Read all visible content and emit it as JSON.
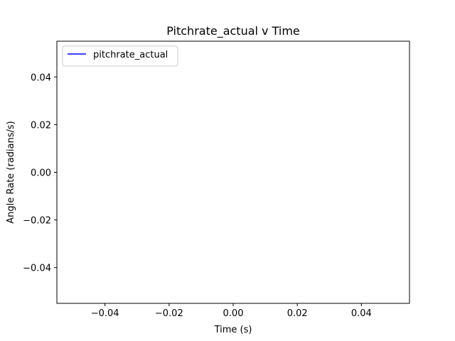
{
  "chart_data": {
    "type": "line",
    "title": "Pitchrate_actual v Time",
    "xlabel": "Time (s)",
    "ylabel": "Angle Rate (radians/s)",
    "xlim": [
      -0.055,
      0.055
    ],
    "ylim": [
      -0.055,
      0.055
    ],
    "x_ticks": [
      -0.04,
      -0.02,
      0.0,
      0.02,
      0.04
    ],
    "x_tick_labels": [
      "−0.04",
      "−0.02",
      "0.00",
      "0.02",
      "0.04"
    ],
    "y_ticks": [
      -0.04,
      -0.02,
      0.0,
      0.02,
      0.04
    ],
    "y_tick_labels": [
      "−0.04",
      "−0.02",
      "0.00",
      "0.02",
      "0.04"
    ],
    "grid": false,
    "legend_position": "upper-left",
    "series": [
      {
        "name": "pitchrate_actual",
        "color": "#0000ff",
        "x": [],
        "y": []
      }
    ]
  }
}
